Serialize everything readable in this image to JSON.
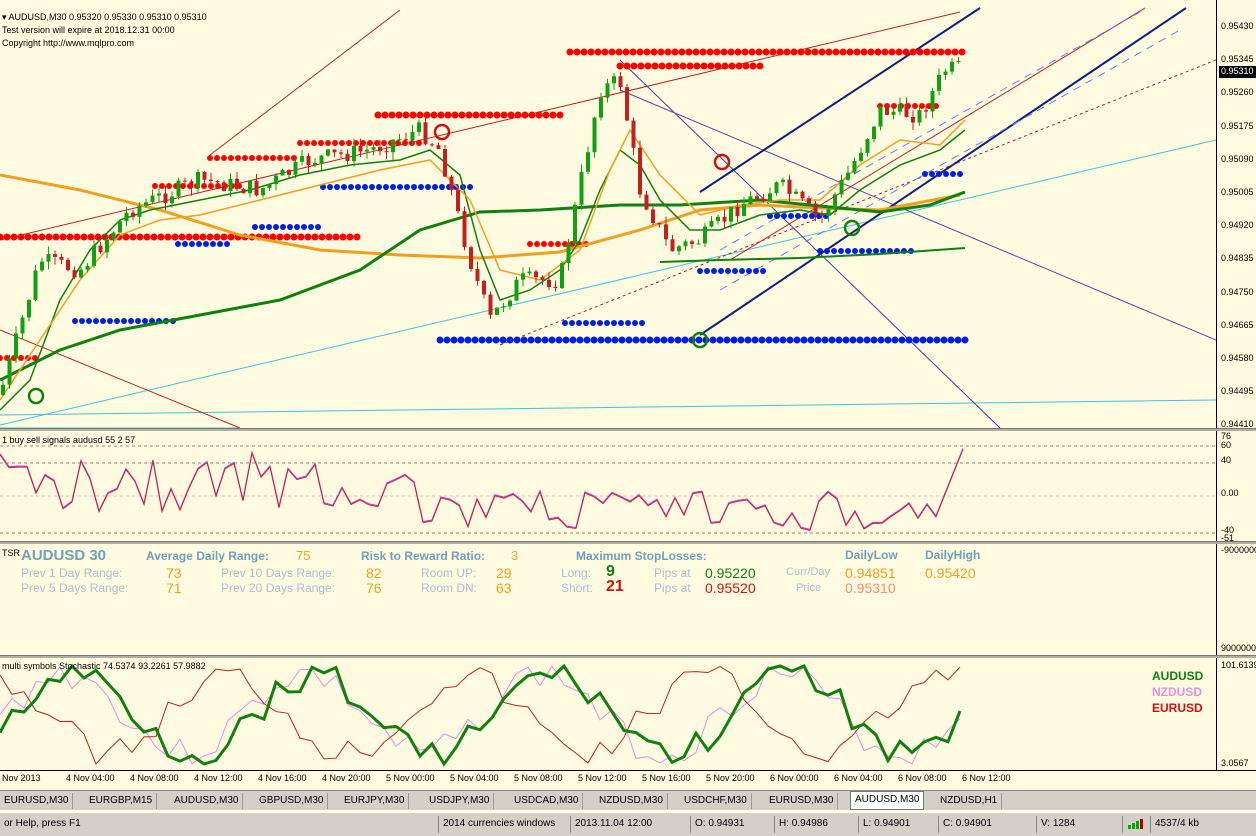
{
  "main": {
    "header": "AUDUSD,M30  0.95320 0.95330 0.95310 0.95310",
    "expiry": "Test version will expire at 2018.12.31 00:00",
    "copyright": "Copyright http://www.mqlpro.com",
    "current_price": "0.95310",
    "price_axis": [
      "0.95430",
      "0.95345",
      "0.95260",
      "0.95175",
      "0.95090",
      "0.95005",
      "0.94920",
      "0.94835",
      "0.94750",
      "0.94665",
      "0.94580",
      "0.94495",
      "0.94410"
    ]
  },
  "oscillator": {
    "title": "1 buy sell signals audusd 55 2 57",
    "axis": [
      "76",
      "60",
      "40",
      "0.00",
      "-40",
      "-51"
    ]
  },
  "tsr": {
    "label": "TSR",
    "symbol": "AUDUSD 30",
    "adr_label": "Average Daily Range:",
    "adr_value": "75",
    "rr_label": "Risk to Reward Ratio:",
    "rr_value": "3",
    "max_sl_label": "Maximum StopLosses:",
    "daily_low_label": "DailyLow",
    "daily_high_label": "DailyHigh",
    "prev1_label": "Prev 1 Day Range:",
    "prev1_value": "73",
    "prev5_label": "Prev 5 Days Range:",
    "prev5_value": "71",
    "prev10_label": "Prev 10 Days Range:",
    "prev10_value": "82",
    "prev20_label": "Prev 20 Days Range:",
    "prev20_value": "76",
    "room_up_label": "Room UP:",
    "room_up_value": "29",
    "room_dn_label": "Room DN:",
    "room_dn_value": "63",
    "long_label": "Long:",
    "long_value": "9",
    "short_label": "Short:",
    "short_value": "21",
    "pips_at_label": "Pips at",
    "long_price": "0.95220",
    "short_price": "0.95520",
    "curr_day_label": "Curr/Day",
    "price_label": "Price",
    "daily_low_value": "0.94851",
    "daily_high_value": "0.95420",
    "current_price": "0.95310",
    "axis_top": "-9000000",
    "axis_bottom": "9000000"
  },
  "stochastic": {
    "title": "multi symbols Stochastic 74.5374 93.2261 57.9882",
    "legend": [
      "AUDUSD",
      "NZDUSD",
      "EURUSD"
    ],
    "axis_top": "101.6139",
    "axis_bottom": "3.0567"
  },
  "time_axis": [
    "Nov 2013",
    "4 Nov 04:00",
    "4 Nov 08:00",
    "4 Nov 12:00",
    "4 Nov 16:00",
    "4 Nov 20:00",
    "5 Nov 00:00",
    "5 Nov 04:00",
    "5 Nov 08:00",
    "5 Nov 12:00",
    "5 Nov 16:00",
    "5 Nov 20:00",
    "6 Nov 00:00",
    "6 Nov 04:00",
    "6 Nov 08:00",
    "6 Nov 12:00"
  ],
  "tabs": [
    "EURUSD,M30",
    "EURGBP,M15",
    "AUDUSD,M30",
    "GBPUSD,M30",
    "EURJPY,M30",
    "USDJPY,M30",
    "USDCAD,M30",
    "NZDUSD,M30",
    "USDCHF,M30",
    "EURUSD,M30",
    "AUDUSD,M30",
    "NZDUSD,H1"
  ],
  "active_tab": 10,
  "status": {
    "help": "or Help, press F1",
    "profile": "2014 currencies windows",
    "time": "2013.11.04 12:00",
    "open": "O: 0.94931",
    "high": "H: 0.94986",
    "low": "L: 0.94901",
    "close": "C: 0.94901",
    "volume": "V: 1284",
    "traffic": "4537/4 kb"
  },
  "colors": {
    "background": "#fffbe0",
    "bull_candle": "#10a010",
    "bear_candle": "#c02020",
    "ma_orange": "#f0a020",
    "ma_green": "#108010",
    "resistance_dots": "#ff0000",
    "support_dots": "#0000e0"
  }
}
